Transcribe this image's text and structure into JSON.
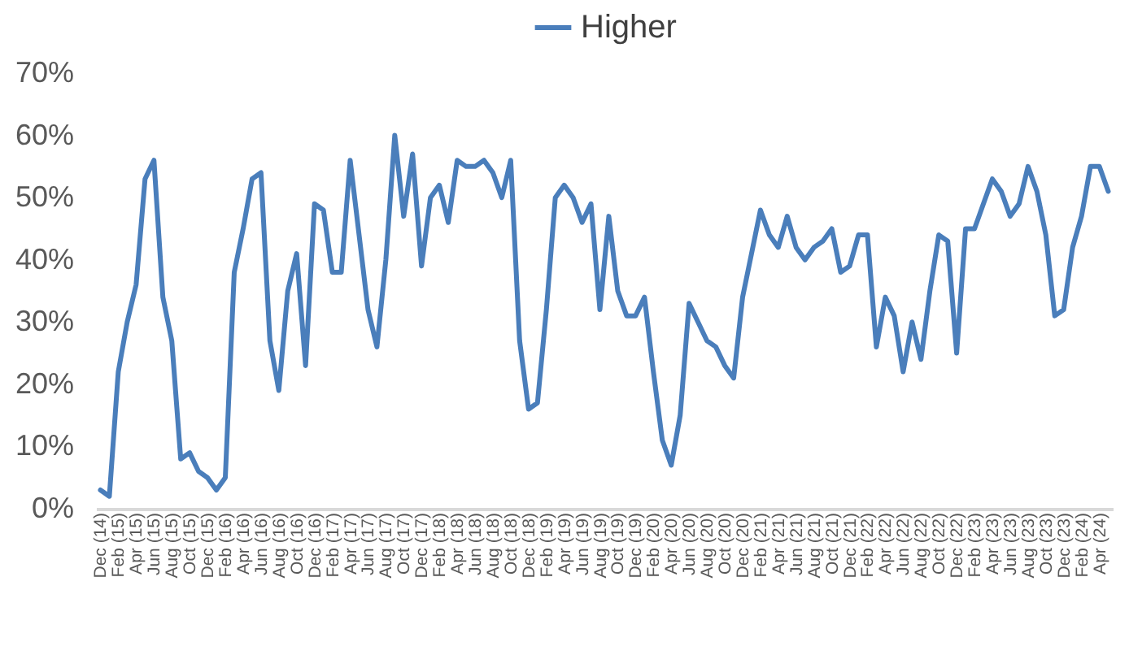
{
  "chart_data": {
    "type": "line",
    "legend": "top",
    "marker": "none",
    "line_style": "solid",
    "categories": [
      "Dec (14)",
      null,
      "Feb (15)",
      null,
      "Apr (15)",
      null,
      "Jun (15)",
      null,
      "Aug (15)",
      null,
      "Oct (15)",
      null,
      "Dec (15)",
      null,
      "Feb (16)",
      null,
      "Apr (16)",
      null,
      "Jun (16)",
      null,
      "Aug (16)",
      null,
      "Oct (16)",
      null,
      "Dec (16)",
      null,
      "Feb (17)",
      null,
      "Apr (17)",
      null,
      "Jun (17)",
      null,
      "Aug (17)",
      null,
      "Oct (17)",
      null,
      "Dec (17)",
      null,
      "Feb (18)",
      null,
      "Apr (18)",
      null,
      "Jun (18)",
      null,
      "Aug (18)",
      null,
      "Oct (18)",
      null,
      "Dec (18)",
      null,
      "Feb (19)",
      null,
      "Apr (19)",
      null,
      "Jun (19)",
      null,
      "Aug (19)",
      null,
      "Oct (19)",
      null,
      "Dec (19)",
      null,
      "Feb (20)",
      null,
      "Apr (20)",
      null,
      "Jun (20)",
      null,
      "Aug (20)",
      null,
      "Oct (20)",
      null,
      "Dec (20)",
      null,
      "Feb (21)",
      null,
      "Apr (21)",
      null,
      "Jun (21)",
      null,
      "Aug (21)",
      null,
      "Oct (21)",
      null,
      "Dec (21)",
      null,
      "Feb (22)",
      null,
      "Apr (22)",
      null,
      "Jun (22)",
      null,
      "Aug (22)",
      null,
      "Oct (22)",
      null,
      "Dec (22)",
      null,
      "Feb (23)",
      null,
      "Apr (23)",
      null,
      "Jun (23)",
      null,
      "Aug (23)",
      null,
      "Oct (23)",
      null,
      "Dec (23)",
      null,
      "Feb (24)",
      null,
      "Apr (24)",
      null
    ],
    "ylim": [
      0,
      70
    ],
    "yticks": [
      {
        "value": 0,
        "label": "0%"
      },
      {
        "value": 10,
        "label": "10%"
      },
      {
        "value": 20,
        "label": "20%"
      },
      {
        "value": 30,
        "label": "30%"
      },
      {
        "value": 40,
        "label": "40%"
      },
      {
        "value": 50,
        "label": "50%"
      },
      {
        "value": 60,
        "label": "60%"
      },
      {
        "value": 70,
        "label": "70%"
      }
    ],
    "series": [
      {
        "name": "Higher",
        "color": "#4a7ebb",
        "values": [
          3,
          2,
          22,
          30,
          36,
          53,
          56,
          34,
          27,
          8,
          9,
          6,
          5,
          3,
          5,
          38,
          45,
          53,
          54,
          27,
          19,
          35,
          41,
          23,
          49,
          48,
          38,
          38,
          56,
          44,
          32,
          26,
          40,
          60,
          47,
          57,
          39,
          50,
          52,
          46,
          56,
          55,
          55,
          56,
          54,
          50,
          56,
          27,
          16,
          17,
          32,
          50,
          52,
          50,
          46,
          49,
          32,
          47,
          35,
          31,
          31,
          34,
          22,
          11,
          7,
          15,
          33,
          30,
          27,
          26,
          23,
          21,
          34,
          41,
          48,
          44,
          42,
          47,
          42,
          40,
          42,
          43,
          45,
          38,
          39,
          44,
          44,
          26,
          34,
          31,
          22,
          30,
          24,
          35,
          44,
          43,
          25,
          45,
          45,
          49,
          53,
          51,
          47,
          49,
          55,
          51,
          44,
          31,
          32,
          42,
          47,
          55,
          55,
          51
        ]
      }
    ]
  }
}
